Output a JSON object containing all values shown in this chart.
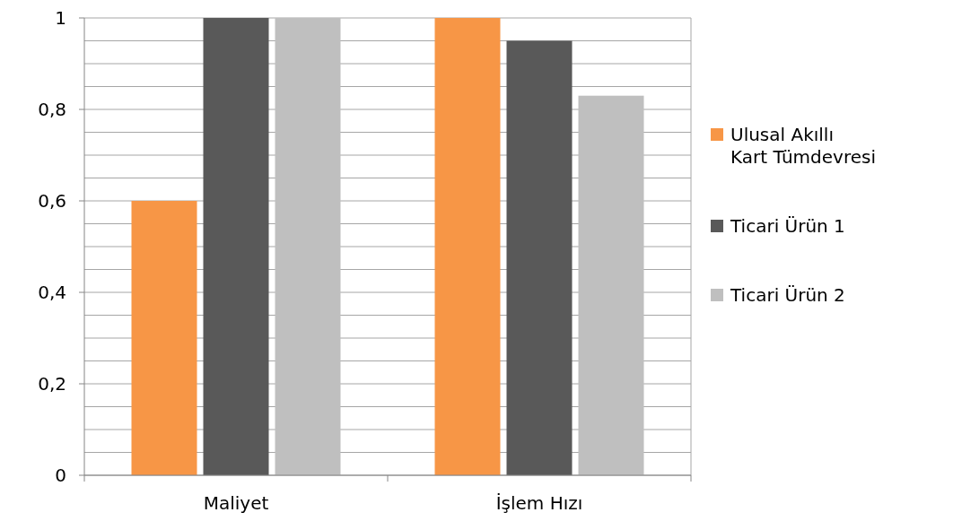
{
  "chart_data": {
    "type": "bar",
    "categories": [
      "Maliyet",
      "İşlem Hızı"
    ],
    "series": [
      {
        "name": "Ulusal Akıllı Kart Tümdevresi",
        "color": "#f79646",
        "values": [
          0.6,
          1
        ]
      },
      {
        "name": "Ticari Ürün 1",
        "color": "#595959",
        "values": [
          1,
          0.95
        ]
      },
      {
        "name": "Ticari Ürün 2",
        "color": "#bfbfbf",
        "values": [
          1,
          0.83
        ]
      }
    ],
    "ylim": [
      0,
      1
    ],
    "yticks": [
      {
        "value": 0,
        "label": "0"
      },
      {
        "value": 0.05,
        "label": null
      },
      {
        "value": 0.1,
        "label": null
      },
      {
        "value": 0.15,
        "label": null
      },
      {
        "value": 0.2,
        "label": "0,2"
      },
      {
        "value": 0.25,
        "label": null
      },
      {
        "value": 0.3,
        "label": null
      },
      {
        "value": 0.35,
        "label": null
      },
      {
        "value": 0.4,
        "label": "0,4"
      },
      {
        "value": 0.45,
        "label": null
      },
      {
        "value": 0.5,
        "label": null
      },
      {
        "value": 0.55,
        "label": null
      },
      {
        "value": 0.6,
        "label": "0,6"
      },
      {
        "value": 0.65,
        "label": null
      },
      {
        "value": 0.7,
        "label": null
      },
      {
        "value": 0.75,
        "label": null
      },
      {
        "value": 0.8,
        "label": "0,8"
      },
      {
        "value": 0.85,
        "label": null
      },
      {
        "value": 0.9,
        "label": null
      },
      {
        "value": 0.95,
        "label": null
      },
      {
        "value": 1,
        "label": "1"
      }
    ],
    "grid": true,
    "legend": "right"
  }
}
